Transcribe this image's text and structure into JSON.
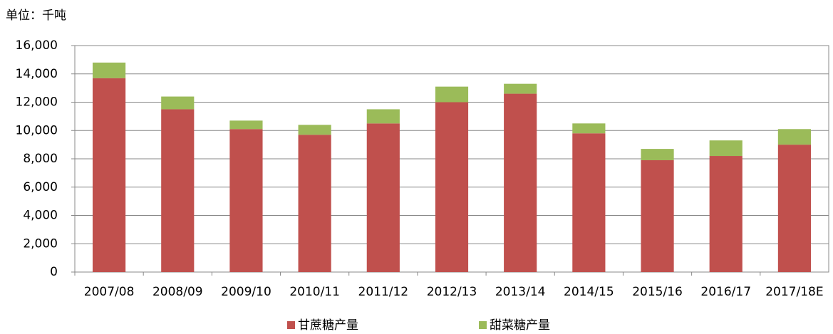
{
  "chart_data": {
    "type": "stacked_bar",
    "unit_label": "单位：千吨",
    "categories": [
      "2007/08",
      "2008/09",
      "2009/10",
      "2010/11",
      "2011/12",
      "2012/13",
      "2013/14",
      "2014/15",
      "2015/16",
      "2016/17",
      "2017/18E"
    ],
    "series": [
      {
        "name": "甘蔗糖产量",
        "color": "#c0504d",
        "values": [
          13700,
          11500,
          10100,
          9700,
          10500,
          12000,
          12600,
          9800,
          7900,
          8200,
          9000
        ]
      },
      {
        "name": "甜菜糖产量",
        "color": "#9bbb59",
        "values": [
          1100,
          900,
          600,
          700,
          1000,
          1100,
          700,
          700,
          800,
          1100,
          1100
        ]
      }
    ],
    "ylim": [
      0,
      16000
    ],
    "yticks": [
      0,
      {
        "value": 2000,
        "label": "2,000"
      },
      {
        "value": 4000,
        "label": "4,000"
      },
      {
        "value": 6000,
        "label": "6,000"
      },
      {
        "value": 8000,
        "label": "8,000"
      },
      {
        "value": 10000,
        "label": "10,000"
      },
      {
        "value": 12000,
        "label": "12,000"
      },
      {
        "value": 14000,
        "label": "14,000"
      },
      {
        "value": 16000,
        "label": "16,000"
      }
    ],
    "grid": true,
    "legend": "bottom"
  }
}
